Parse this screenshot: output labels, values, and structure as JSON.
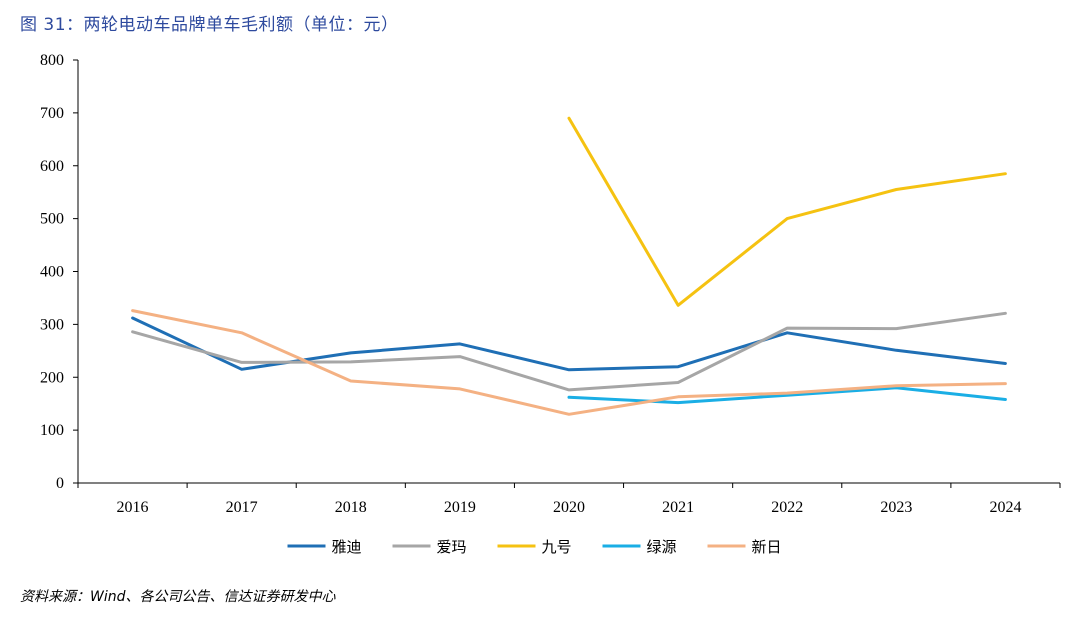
{
  "figure": {
    "title": "图 31：两轮电动车品牌单车毛利额（单位：元）",
    "source": "资料来源：Wind、各公司公告、信达证券研发中心"
  },
  "chart_data": {
    "type": "line",
    "title": "两轮电动车品牌单车毛利额（单位：元）",
    "categories": [
      "2016",
      "2017",
      "2018",
      "2019",
      "2020",
      "2021",
      "2022",
      "2023",
      "2024"
    ],
    "ylim": [
      0,
      800
    ],
    "yticks": [
      0,
      100,
      200,
      300,
      400,
      500,
      600,
      700,
      800
    ],
    "grid": false,
    "legend_position": "bottom",
    "series": [
      {
        "name": "雅迪",
        "color": "#1f6fb5",
        "values": [
          312,
          215,
          246,
          263,
          214,
          220,
          284,
          251,
          226
        ]
      },
      {
        "name": "爱玛",
        "color": "#a6a6a6",
        "values": [
          286,
          228,
          229,
          239,
          176,
          190,
          293,
          292,
          321
        ]
      },
      {
        "name": "九号",
        "color": "#f5c211",
        "values": [
          null,
          null,
          null,
          null,
          690,
          336,
          500,
          555,
          585
        ]
      },
      {
        "name": "绿源",
        "color": "#1aaee5",
        "values": [
          null,
          null,
          null,
          null,
          162,
          152,
          166,
          180,
          158
        ]
      },
      {
        "name": "新日",
        "color": "#f4b183",
        "values": [
          326,
          284,
          193,
          178,
          130,
          163,
          170,
          184,
          188
        ]
      }
    ]
  }
}
